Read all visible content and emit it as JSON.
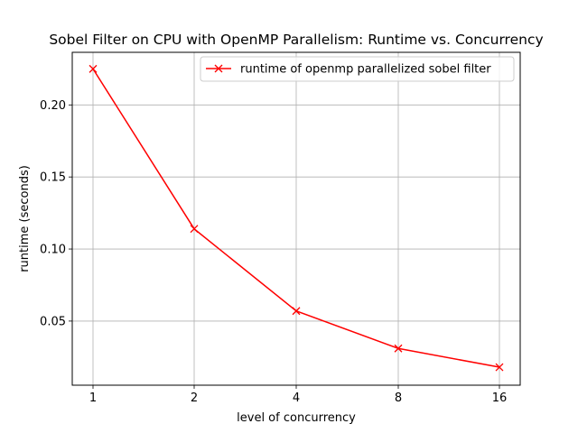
{
  "chart_data": {
    "type": "line",
    "title": "Sobel Filter on CPU with OpenMP Parallelism: Runtime vs. Concurrency",
    "xlabel": "level of concurrency",
    "ylabel": "runtime (seconds)",
    "x_ticks": [
      "1",
      "2",
      "4",
      "8",
      "16"
    ],
    "y_ticks": [
      0.05,
      0.1,
      0.15,
      0.2
    ],
    "y_tick_labels": [
      "0.05",
      "0.10",
      "0.15",
      "0.20"
    ],
    "ylim": [
      0.0055,
      0.2365
    ],
    "grid": true,
    "legend_position": "top-right",
    "series": [
      {
        "name": "runtime of openmp parallelized sobel filter",
        "color": "#ff0000",
        "marker": "x",
        "x": [
          1,
          2,
          4,
          8,
          16
        ],
        "y": [
          0.225,
          0.114,
          0.057,
          0.031,
          0.018
        ]
      }
    ]
  }
}
